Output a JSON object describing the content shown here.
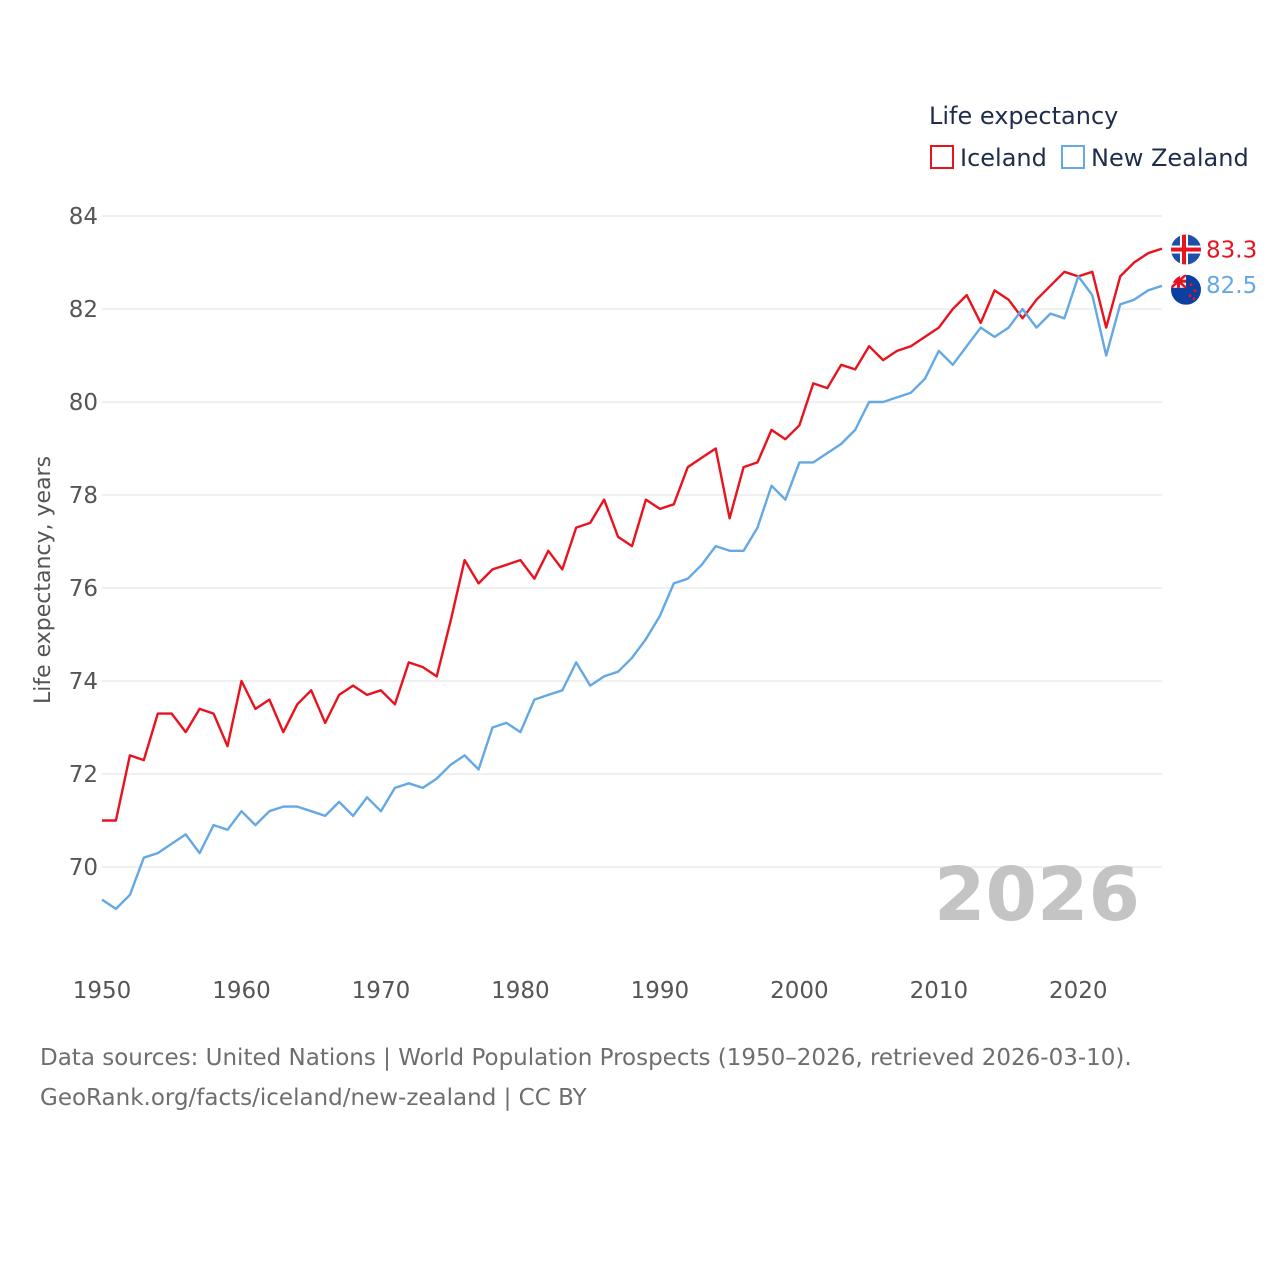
{
  "chart_data": {
    "type": "line",
    "legend_title": "Life expectancy",
    "ylabel": "Life expectancy, years",
    "xlabel": "",
    "ylim": [
      68.4,
      84.5
    ],
    "xlim": [
      1950,
      2026
    ],
    "x_ticks": [
      "1950",
      "1960",
      "1970",
      "1980",
      "1990",
      "2000",
      "2010",
      "2020"
    ],
    "y_ticks": [
      "70",
      "72",
      "74",
      "76",
      "78",
      "80",
      "82",
      "84"
    ],
    "year_label": "2026",
    "grid": true,
    "legend_position": "top-right",
    "x": [
      1950,
      1951,
      1952,
      1953,
      1954,
      1955,
      1956,
      1957,
      1958,
      1959,
      1960,
      1961,
      1962,
      1963,
      1964,
      1965,
      1966,
      1967,
      1968,
      1969,
      1970,
      1971,
      1972,
      1973,
      1974,
      1975,
      1976,
      1977,
      1978,
      1979,
      1980,
      1981,
      1982,
      1983,
      1984,
      1985,
      1986,
      1987,
      1988,
      1989,
      1990,
      1991,
      1992,
      1993,
      1994,
      1995,
      1996,
      1997,
      1998,
      1999,
      2000,
      2001,
      2002,
      2003,
      2004,
      2005,
      2006,
      2007,
      2008,
      2009,
      2010,
      2011,
      2012,
      2013,
      2014,
      2015,
      2016,
      2017,
      2018,
      2019,
      2020,
      2021,
      2022,
      2023,
      2024,
      2025,
      2026
    ],
    "series": [
      {
        "name": "Iceland",
        "color": "#e8131e",
        "end_label": "83.3",
        "flag": "iceland-flag",
        "values": [
          71.0,
          71.0,
          72.4,
          72.3,
          73.3,
          73.3,
          72.9,
          73.4,
          73.3,
          72.6,
          74.0,
          73.4,
          73.6,
          72.9,
          73.5,
          73.8,
          73.1,
          73.7,
          73.9,
          73.7,
          73.8,
          73.5,
          74.4,
          74.3,
          74.1,
          75.3,
          76.6,
          76.1,
          76.4,
          76.5,
          76.6,
          76.2,
          76.8,
          76.4,
          77.3,
          77.4,
          77.9,
          77.1,
          76.9,
          77.9,
          77.7,
          77.8,
          78.6,
          78.8,
          79.0,
          77.5,
          78.6,
          78.7,
          79.4,
          79.2,
          79.5,
          80.4,
          80.3,
          80.8,
          80.7,
          81.2,
          80.9,
          81.1,
          81.2,
          81.4,
          81.6,
          82.0,
          82.3,
          81.7,
          82.4,
          82.2,
          81.8,
          82.2,
          82.5,
          82.8,
          82.7,
          82.8,
          81.6,
          82.7,
          83.0,
          83.2,
          83.3
        ]
      },
      {
        "name": "New Zealand",
        "color": "#64a8e4",
        "end_label": "82.5",
        "flag": "new-zealand-flag",
        "values": [
          69.3,
          69.1,
          69.4,
          70.2,
          70.3,
          70.5,
          70.7,
          70.3,
          70.9,
          70.8,
          71.2,
          70.9,
          71.2,
          71.3,
          71.3,
          71.2,
          71.1,
          71.4,
          71.1,
          71.5,
          71.2,
          71.7,
          71.8,
          71.7,
          71.9,
          72.2,
          72.4,
          72.1,
          73.0,
          73.1,
          72.9,
          73.6,
          73.7,
          73.8,
          74.4,
          73.9,
          74.1,
          74.2,
          74.5,
          74.9,
          75.4,
          76.1,
          76.2,
          76.5,
          76.9,
          76.8,
          76.8,
          77.3,
          78.2,
          77.9,
          78.7,
          78.7,
          78.9,
          79.1,
          79.4,
          80.0,
          80.0,
          80.1,
          80.2,
          80.5,
          81.1,
          80.8,
          81.2,
          81.6,
          81.4,
          81.6,
          82.0,
          81.6,
          81.9,
          81.8,
          82.7,
          82.3,
          81.0,
          82.1,
          82.2,
          82.4,
          82.5
        ]
      }
    ]
  },
  "footer": {
    "line1": "Data sources: United Nations | World Population Prospects (1950–2026, retrieved 2026-03-10).",
    "line2": "GeoRank.org/facts/iceland/new-zealand | CC BY"
  }
}
